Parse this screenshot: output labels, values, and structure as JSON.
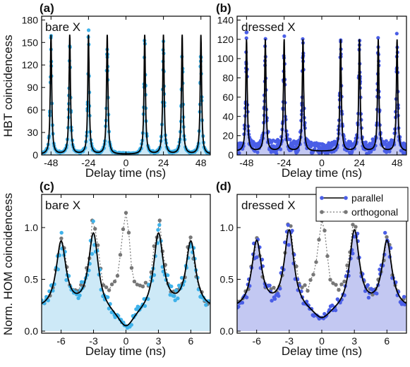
{
  "colors": {
    "bare": "#3fb2ea",
    "bare_fill": "#cde9f7",
    "dressed": "#4a5ee6",
    "dressed_fill": "#c3c8f2",
    "orth": "#777777",
    "fit": "#000000"
  },
  "panels": [
    {
      "key": "a",
      "label": "(a)",
      "inner_label": "bare X",
      "type": "scatter",
      "xlabel": "Delay time (ns)",
      "xlim": [
        -54,
        54
      ],
      "ylim": [
        0,
        185
      ],
      "xticks": [
        -48,
        -24,
        0,
        24,
        48
      ],
      "yticks": [
        0,
        30,
        60,
        90,
        120,
        150,
        180
      ],
      "peak_positions": [
        -48,
        -36,
        -24,
        -12,
        12,
        24,
        36,
        48
      ],
      "peak_heights": [
        152,
        150,
        152,
        150,
        160,
        152,
        150,
        152
      ],
      "peak_width_ns": 0.55,
      "baseline": 1,
      "fit_peak_height": 160,
      "data_color": "bare"
    },
    {
      "key": "b",
      "label": "(b)",
      "inner_label": "dressed X",
      "type": "scatter",
      "xlabel": "Delay time (ns)",
      "xlim": [
        -54,
        54
      ],
      "ylim": [
        0,
        144
      ],
      "xticks": [
        -48,
        -24,
        0,
        24,
        48
      ],
      "yticks": [
        0,
        20,
        40,
        60,
        80,
        100,
        120,
        140
      ],
      "peak_positions": [
        -48,
        -36,
        -24,
        -12,
        12,
        24,
        36,
        48
      ],
      "peak_heights": [
        118,
        118,
        120,
        120,
        122,
        122,
        120,
        118
      ],
      "peak_width_ns": 0.55,
      "baseline": 6,
      "fit_peak_height": 122,
      "data_color": "dressed"
    },
    {
      "key": "c",
      "label": "(c)",
      "inner_label": "bare X",
      "type": "scatter",
      "xlabel": "Delay time (ns)",
      "xlim": [
        -7.8,
        7.8
      ],
      "ylim": [
        -0.02,
        1.32
      ],
      "xticks": [
        -6,
        -3,
        0,
        3,
        6
      ],
      "yticks": [
        0.0,
        0.5,
        1.0
      ],
      "ytick_labels": [
        "0.0",
        "0.5",
        "1.0"
      ],
      "parallel_peaks": [
        [
          -6,
          0.86
        ],
        [
          -3,
          1.0
        ],
        [
          3,
          1.0
        ],
        [
          6,
          0.86
        ]
      ],
      "parallel_center": 0.04,
      "orthogonal_peaks": [
        [
          -6,
          0.86
        ],
        [
          -3,
          1.0
        ],
        [
          0,
          1.0
        ],
        [
          3,
          1.0
        ],
        [
          6,
          0.86
        ]
      ],
      "baseline": 0.2,
      "peak_width_ns": 0.55,
      "data_color": "bare"
    },
    {
      "key": "d",
      "label": "(d)",
      "inner_label": "dressed X",
      "type": "scatter",
      "xlabel": "Delay time (ns)",
      "xlim": [
        -7.8,
        7.8
      ],
      "ylim": [
        -0.02,
        1.32
      ],
      "xticks": [
        -6,
        -3,
        0,
        3,
        6
      ],
      "yticks": [
        0.0,
        0.5,
        1.0
      ],
      "ytick_labels": [
        "0.0",
        "0.5",
        "1.0"
      ],
      "parallel_peaks": [
        [
          -6,
          0.86
        ],
        [
          -3,
          1.0
        ],
        [
          3,
          1.0
        ],
        [
          6,
          0.86
        ]
      ],
      "parallel_center": 0.1,
      "orthogonal_peaks": [
        [
          -6,
          0.86
        ],
        [
          -3,
          1.0
        ],
        [
          0,
          1.0
        ],
        [
          3,
          1.0
        ],
        [
          6,
          0.86
        ]
      ],
      "baseline": 0.2,
      "peak_width_ns": 0.55,
      "data_color": "dressed"
    }
  ],
  "ylabel_top": "HBT coincidencess",
  "ylabel_bottom": "Norm. HOM coincidencess",
  "legend": {
    "placement": "top-right of panel d",
    "items": [
      "parallel",
      "orthogonal"
    ]
  }
}
